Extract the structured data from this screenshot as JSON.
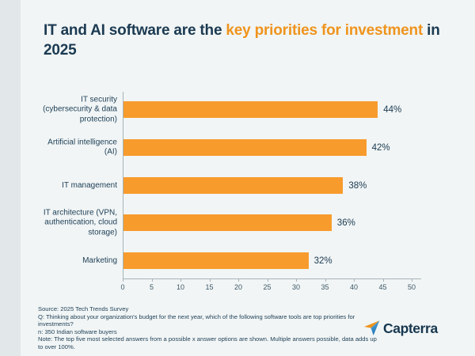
{
  "title": {
    "part1": "IT and AI software are the ",
    "highlight": "key priorities for investment",
    "part2": " in 2025"
  },
  "chart_data": {
    "type": "bar",
    "orientation": "horizontal",
    "title": "IT and AI software are the key priorities for investment in 2025",
    "categories": [
      "IT security (cybersecurity & data protection)",
      "Artificial intelligence (AI)",
      "IT management",
      "IT architecture (VPN, authentication, cloud storage)",
      "Marketing"
    ],
    "values": [
      44,
      42,
      38,
      36,
      32
    ],
    "value_labels": [
      "44%",
      "42%",
      "38%",
      "36%",
      "32%"
    ],
    "xlabel": "",
    "ylabel": "",
    "xlim": [
      0,
      50
    ],
    "x_ticks": [
      0,
      5,
      10,
      15,
      20,
      25,
      30,
      35,
      40,
      45,
      50
    ],
    "grid": false,
    "legend": "none",
    "bar_color": "#f89b2d"
  },
  "footer": {
    "lines": [
      "Source: 2025 Tech Trends Survey",
      "Q: Thinking about your organization's budget for the next year, which of the following software tools are top priorities for investments?",
      "n: 350 Indian software buyers",
      "Note: The top five most selected answers from a possible x answer options are shown. Multiple answers possible, data adds up to over 100%."
    ]
  },
  "brand": {
    "name": "Capterra"
  },
  "colors": {
    "outer_background": "#e2e8ea",
    "card_background": "#f1f5f5",
    "title_navy": "#1b3a52",
    "title_orange": "#ef941d",
    "bar_orange": "#f89b2d",
    "axis_gray": "#a7b3b9",
    "logo_blue": "#2e86c1"
  }
}
